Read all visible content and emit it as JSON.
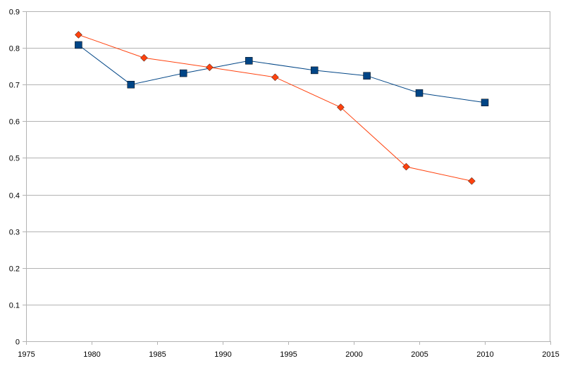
{
  "chart_data": {
    "type": "line",
    "title": "",
    "xlabel": "",
    "ylabel": "",
    "xlim": [
      1975,
      2015
    ],
    "ylim": [
      0,
      0.9
    ],
    "x_ticks": [
      1975,
      1980,
      1985,
      1990,
      1995,
      2000,
      2005,
      2010,
      2015
    ],
    "y_ticks": [
      0,
      0.1,
      0.2,
      0.3,
      0.4,
      0.5,
      0.6,
      0.7,
      0.8,
      0.9
    ],
    "x_tick_labels": [
      "1975",
      "1980",
      "1985",
      "1990",
      "1995",
      "2000",
      "2005",
      "2010",
      "2015"
    ],
    "y_tick_labels": [
      "0",
      "0.1",
      "0.2",
      "0.3",
      "0.4",
      "0.5",
      "0.6",
      "0.7",
      "0.8",
      "0.9"
    ],
    "grid": "horizontal",
    "legend": "none",
    "series": [
      {
        "marker": "square",
        "color": "#004586",
        "x": [
          1979,
          1983,
          1987,
          1992,
          1997,
          2001,
          2005,
          2010
        ],
        "y": [
          0.808,
          0.7,
          0.731,
          0.765,
          0.739,
          0.724,
          0.677,
          0.651
        ]
      },
      {
        "marker": "diamond",
        "color": "#ff420e",
        "x": [
          1979,
          1984,
          1989,
          1994,
          1999,
          2004,
          2009
        ],
        "y": [
          0.836,
          0.773,
          0.747,
          0.72,
          0.638,
          0.476,
          0.437
        ]
      }
    ]
  }
}
